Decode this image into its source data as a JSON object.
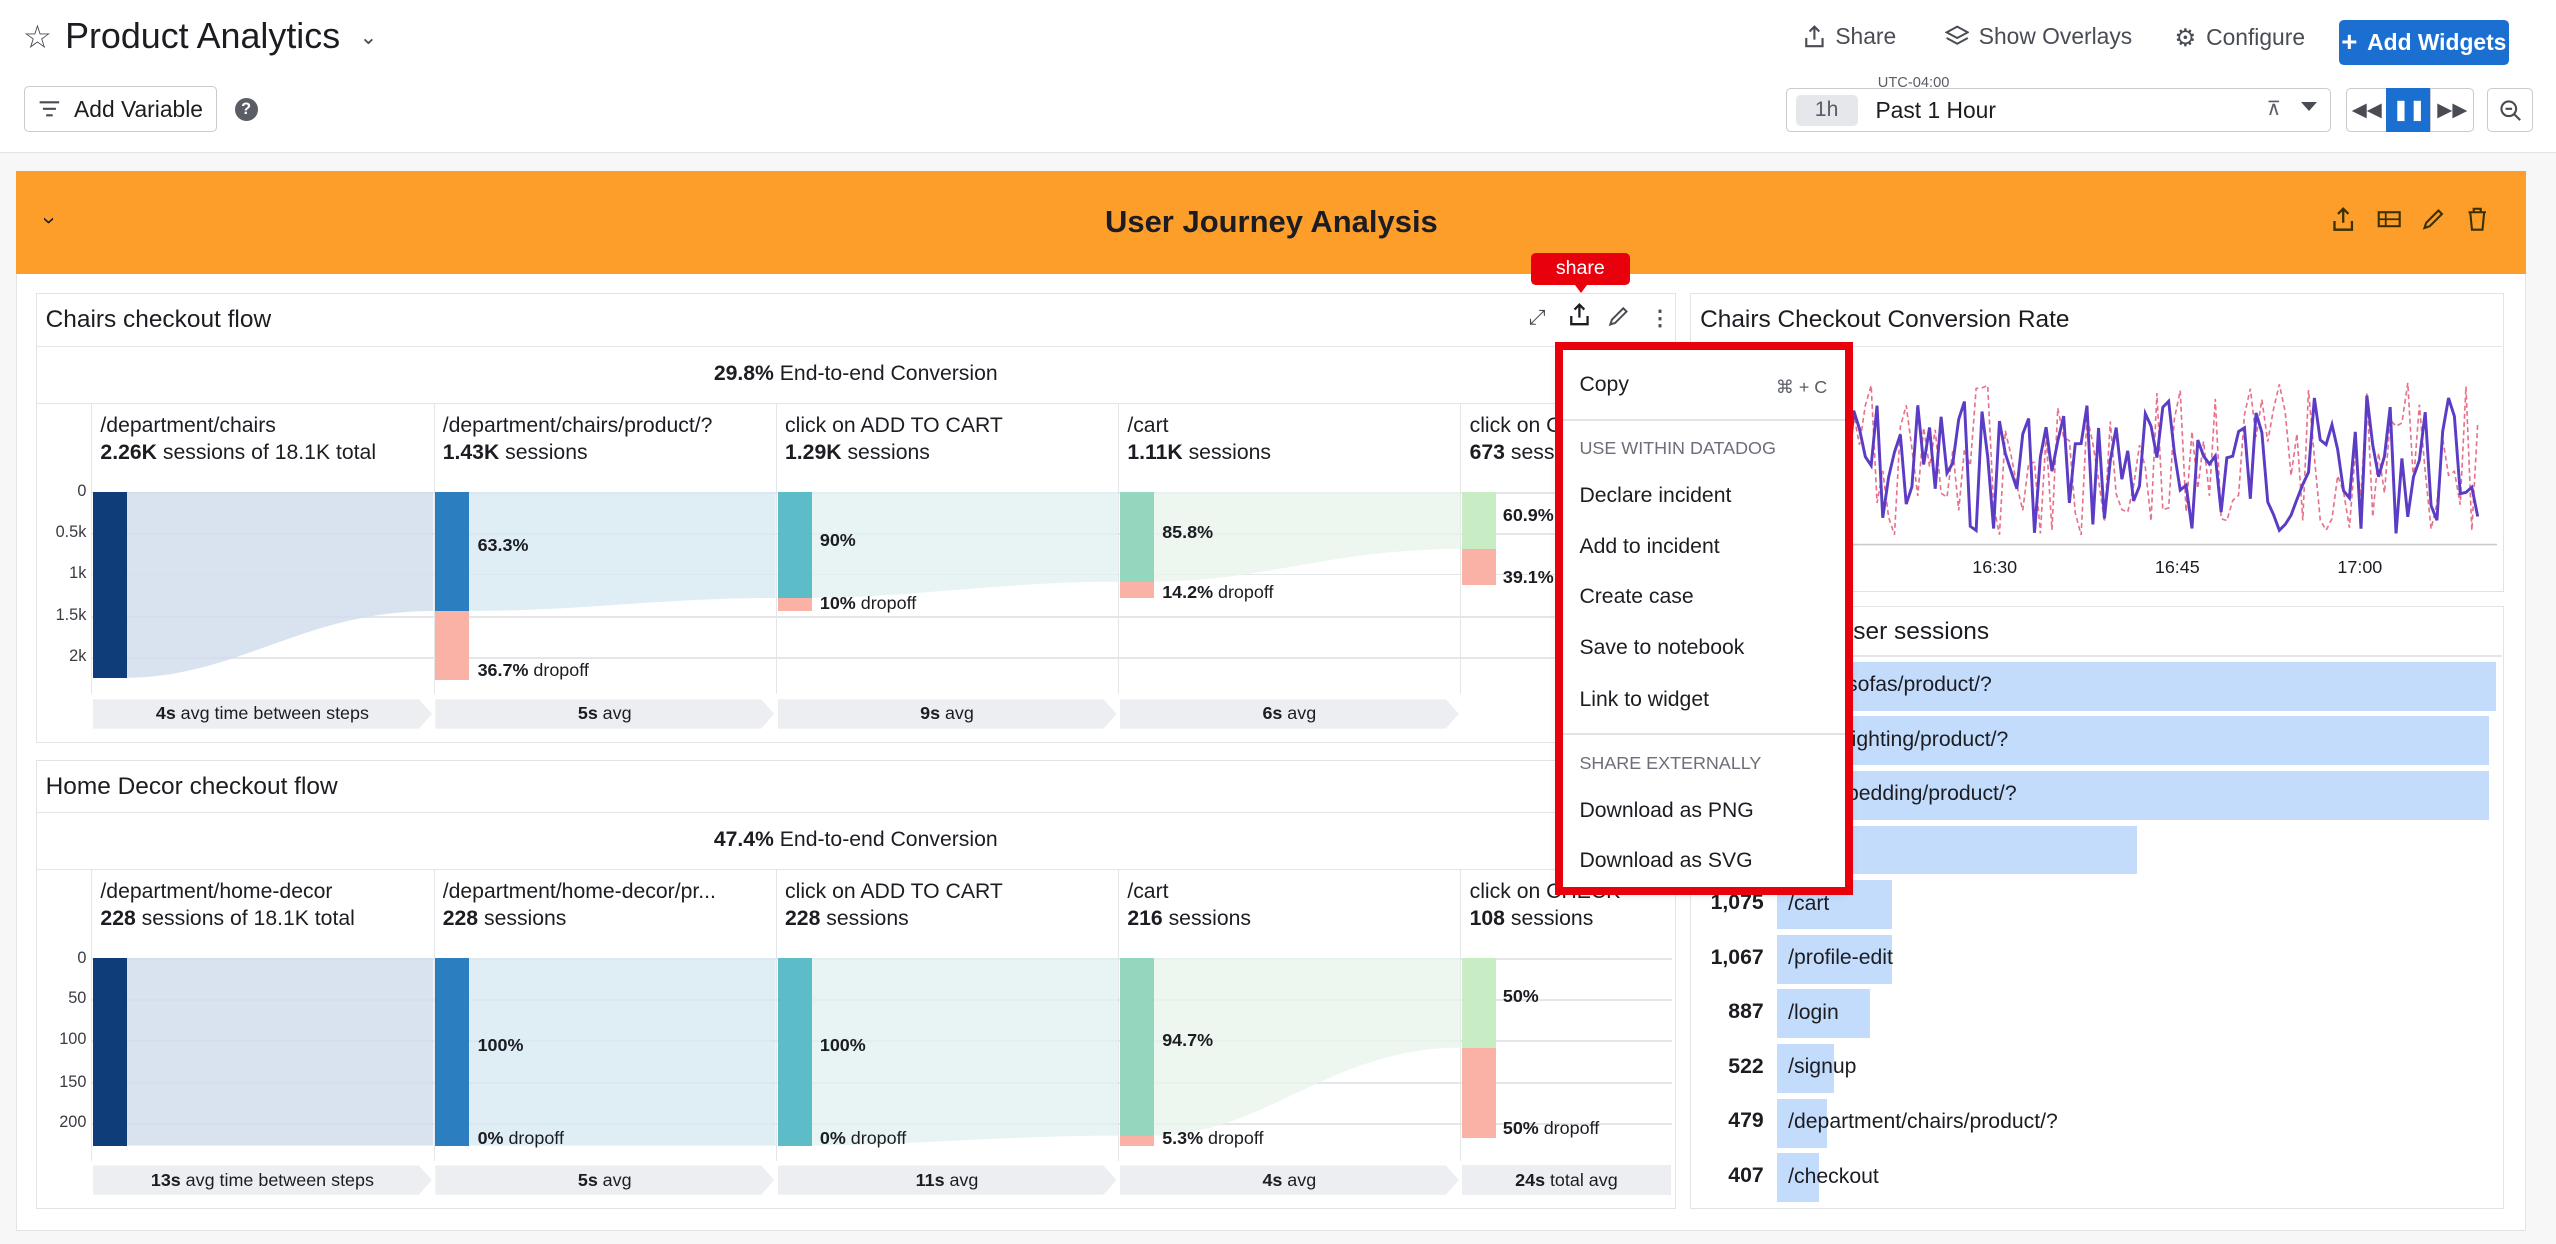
{
  "header": {
    "title": "Product Analytics",
    "share_label": "Share",
    "overlays_label": "Show Overlays",
    "configure_label": "Configure",
    "add_widgets_label": "Add Widgets",
    "add_variable_label": "Add Variable",
    "timezone": "UTC-04:00",
    "time_pill": "1h",
    "time_range": "Past 1 Hour"
  },
  "group": {
    "title": "User Journey Analysis"
  },
  "tooltip": "share",
  "funnel1": {
    "title": "Chairs checkout flow",
    "conversion_value": "29.8%",
    "conversion_label": "End-to-end Conversion",
    "yticks": [
      "0",
      "0.5k",
      "1k",
      "1.5k",
      "2k"
    ],
    "steps": [
      {
        "name": "/department/chairs",
        "sessions": "2.26K",
        "sessions_suffix": "sessions of 18.1K total",
        "avg_value": "4s",
        "avg_label": "avg time between steps"
      },
      {
        "name": "/department/chairs/product/?",
        "sessions": "1.43K",
        "sessions_suffix": "sessions",
        "pct": "63.3%",
        "drop_value": "36.7%",
        "drop_label": "dropoff",
        "avg_value": "5s",
        "avg_label": "avg"
      },
      {
        "name": "click on ADD TO CART",
        "sessions": "1.29K",
        "sessions_suffix": "sessions",
        "pct": "90%",
        "drop_value": "10%",
        "drop_label": "dropoff",
        "avg_value": "9s",
        "avg_label": "avg"
      },
      {
        "name": "/cart",
        "sessions": "1.11K",
        "sessions_suffix": "sessions",
        "pct": "85.8%",
        "drop_value": "14.2%",
        "drop_label": "dropoff",
        "avg_value": "6s",
        "avg_label": "avg"
      },
      {
        "name": "click on C",
        "sessions": "673",
        "sessions_suffix": "sessi",
        "pct": "60.9%",
        "drop_value": "39.1%"
      }
    ]
  },
  "funnel2": {
    "title": "Home Decor checkout flow",
    "conversion_value": "47.4%",
    "conversion_label": "End-to-end Conversion",
    "yticks": [
      "0",
      "50",
      "100",
      "150",
      "200"
    ],
    "steps": [
      {
        "name": "/department/home-decor",
        "sessions": "228",
        "sessions_suffix": "sessions of 18.1K total",
        "avg_value": "13s",
        "avg_label": "avg time between steps"
      },
      {
        "name": "/department/home-decor/pr...",
        "sessions": "228",
        "sessions_suffix": "sessions",
        "pct": "100%",
        "drop_value": "0%",
        "drop_label": "dropoff",
        "avg_value": "5s",
        "avg_label": "avg"
      },
      {
        "name": "click on ADD TO CART",
        "sessions": "228",
        "sessions_suffix": "sessions",
        "pct": "100%",
        "drop_value": "0%",
        "drop_label": "dropoff",
        "avg_value": "11s",
        "avg_label": "avg"
      },
      {
        "name": "/cart",
        "sessions": "216",
        "sessions_suffix": "sessions",
        "pct": "94.7%",
        "drop_value": "5.3%",
        "drop_label": "dropoff",
        "avg_value": "4s",
        "avg_label": "avg"
      },
      {
        "name": "click on CHECK",
        "sessions": "108",
        "sessions_suffix": "sessions",
        "pct": "50%",
        "drop_value": "50%",
        "drop_label": "dropoff",
        "avg_value": "24s",
        "avg_label": "total avg"
      }
    ]
  },
  "conversion_widget": {
    "title": "Chairs Checkout Conversion Rate",
    "xticks": [
      "16:30",
      "16:45",
      "17:00"
    ]
  },
  "sessions_widget": {
    "title_partial": "ser sessions",
    "rows": [
      {
        "value": "",
        "label": "tment/sofas/product/?",
        "fraction": 1.0
      },
      {
        "value": "",
        "label": "tment/lighting/product/?",
        "fraction": 0.99
      },
      {
        "value": "",
        "label": "tment/bedding/product/?",
        "fraction": 0.99
      },
      {
        "value": "",
        "label": "",
        "fraction": 0.5
      },
      {
        "value": "1,075",
        "label": "/cart",
        "fraction": 0.16
      },
      {
        "value": "1,067",
        "label": "/profile-edit",
        "fraction": 0.16
      },
      {
        "value": "887",
        "label": "/login",
        "fraction": 0.13
      },
      {
        "value": "522",
        "label": "/signup",
        "fraction": 0.08
      },
      {
        "value": "479",
        "label": "/department/chairs/product/?",
        "fraction": 0.07
      },
      {
        "value": "407",
        "label": "/checkout",
        "fraction": 0.06
      }
    ]
  },
  "menu": {
    "copy": "Copy",
    "copy_shortcut": "⌘ + C",
    "section_within": "USE WITHIN DATADOG",
    "declare_incident": "Declare incident",
    "add_to_incident": "Add to incident",
    "create_case": "Create case",
    "save_to_notebook": "Save to notebook",
    "link_to_widget": "Link to widget",
    "section_external": "SHARE EXTERNALLY",
    "download_png": "Download as PNG",
    "download_svg": "Download as SVG"
  },
  "colors": {
    "accent": "#1a6fd1",
    "group_header": "#fd9e2a",
    "highlight": "#e8000d",
    "dropoff": "#f9b2a5",
    "step1": "#0f3d7a",
    "step2": "#2b7fc0",
    "step3": "#5cbcc8",
    "step4": "#93d8be",
    "step5": "#c8ecc4",
    "bar_list": "#c3dcfc",
    "line_primary": "#5b3cc4",
    "line_secondary": "#e8708a"
  }
}
